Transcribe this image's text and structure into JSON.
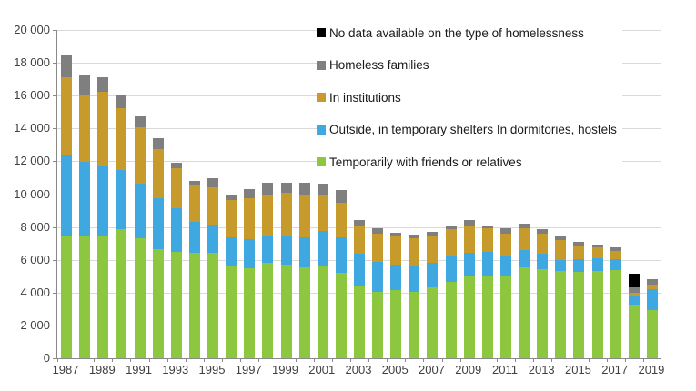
{
  "chart_data": {
    "type": "bar",
    "stacked": true,
    "title": "",
    "xlabel": "",
    "ylabel": "",
    "ylim": [
      0,
      20000
    ],
    "ytick_step": 2000,
    "grid": "horizontal-light-gray",
    "legend_position": "top-right-inside",
    "ytick_labels": [
      "20 000",
      "18 000",
      "16 000",
      "14 000",
      "12 000",
      "10 000",
      "8 000",
      "6 000",
      "4 000",
      "2 000",
      "0"
    ],
    "x": [
      1987,
      1988,
      1989,
      1990,
      1991,
      1992,
      1993,
      1994,
      1995,
      1996,
      1997,
      1998,
      1999,
      2000,
      2001,
      2002,
      2003,
      2004,
      2005,
      2006,
      2007,
      2008,
      2009,
      2010,
      2011,
      2012,
      2013,
      2014,
      2015,
      2016,
      2017,
      2018,
      2019
    ],
    "xtick_labels": [
      "1987",
      "1989",
      "1991",
      "1993",
      "1995",
      "1997",
      "1999",
      "2001",
      "2003",
      "2005",
      "2007",
      "2009",
      "2011",
      "2013",
      "2015",
      "2017",
      "2019"
    ],
    "series": [
      {
        "key": "friends-relatives",
        "name": "Temporarily with friends or relatives",
        "color": "#8DC63F",
        "values": [
          7500,
          7450,
          7450,
          7850,
          7300,
          6650,
          6500,
          6450,
          6400,
          5650,
          5500,
          5800,
          5700,
          5550,
          5650,
          5200,
          4350,
          4050,
          4150,
          4050,
          4300,
          4650,
          5000,
          5050,
          5000,
          5550,
          5450,
          5300,
          5250,
          5300,
          5350,
          3250,
          2950
        ]
      },
      {
        "key": "outside-shelters",
        "name": "Outside, in temporary shelters In dormitories, hostels",
        "color": "#3FA8E0",
        "values": [
          4850,
          4500,
          4250,
          3600,
          3350,
          3100,
          2650,
          1850,
          1750,
          1700,
          1750,
          1650,
          1700,
          1800,
          2100,
          2150,
          2000,
          1850,
          1550,
          1600,
          1500,
          1550,
          1450,
          1450,
          1200,
          1050,
          900,
          700,
          800,
          800,
          700,
          500,
          1250
        ]
      },
      {
        "key": "institutions",
        "name": "In institutions",
        "color": "#C69A2B",
        "values": [
          4750,
          4100,
          4550,
          3800,
          3400,
          3000,
          2450,
          2200,
          2250,
          2300,
          2500,
          2550,
          2700,
          2650,
          2200,
          2150,
          1750,
          1700,
          1700,
          1650,
          1600,
          1650,
          1650,
          1400,
          1400,
          1350,
          1250,
          1200,
          800,
          650,
          500,
          250,
          300
        ]
      },
      {
        "key": "homeless-families",
        "name": "Homeless families",
        "color": "#7F7F7F",
        "values": [
          1400,
          1200,
          850,
          800,
          700,
          650,
          300,
          300,
          550,
          250,
          550,
          700,
          600,
          700,
          700,
          750,
          350,
          300,
          250,
          250,
          300,
          250,
          300,
          200,
          300,
          250,
          250,
          250,
          250,
          200,
          200,
          300,
          300
        ]
      },
      {
        "key": "no-data",
        "name": "No data available on the type of homelessness",
        "color": "#000000",
        "values": [
          0,
          0,
          0,
          0,
          0,
          0,
          0,
          0,
          0,
          0,
          0,
          0,
          0,
          0,
          0,
          0,
          0,
          0,
          0,
          0,
          0,
          0,
          0,
          0,
          0,
          0,
          0,
          0,
          0,
          0,
          0,
          850,
          0
        ]
      }
    ],
    "legend": [
      {
        "key": "no-data",
        "label": "No data available on the type of homelessness",
        "color": "#000000"
      },
      {
        "key": "homeless-families",
        "label": "Homeless families",
        "color": "#7F7F7F"
      },
      {
        "key": "institutions",
        "label": "In institutions",
        "color": "#C69A2B"
      },
      {
        "key": "outside-shelters",
        "label": "Outside, in temporary shelters In dormitories, hostels",
        "color": "#3FA8E0"
      },
      {
        "key": "friends-relatives",
        "label": "Temporarily with friends or relatives",
        "color": "#8DC63F"
      }
    ]
  },
  "colors": {
    "background": "#ffffff",
    "gridline": "#d9d9d9",
    "axis": "#898989",
    "tick_text": "#404040",
    "legend_text": "#1a1a1a"
  }
}
